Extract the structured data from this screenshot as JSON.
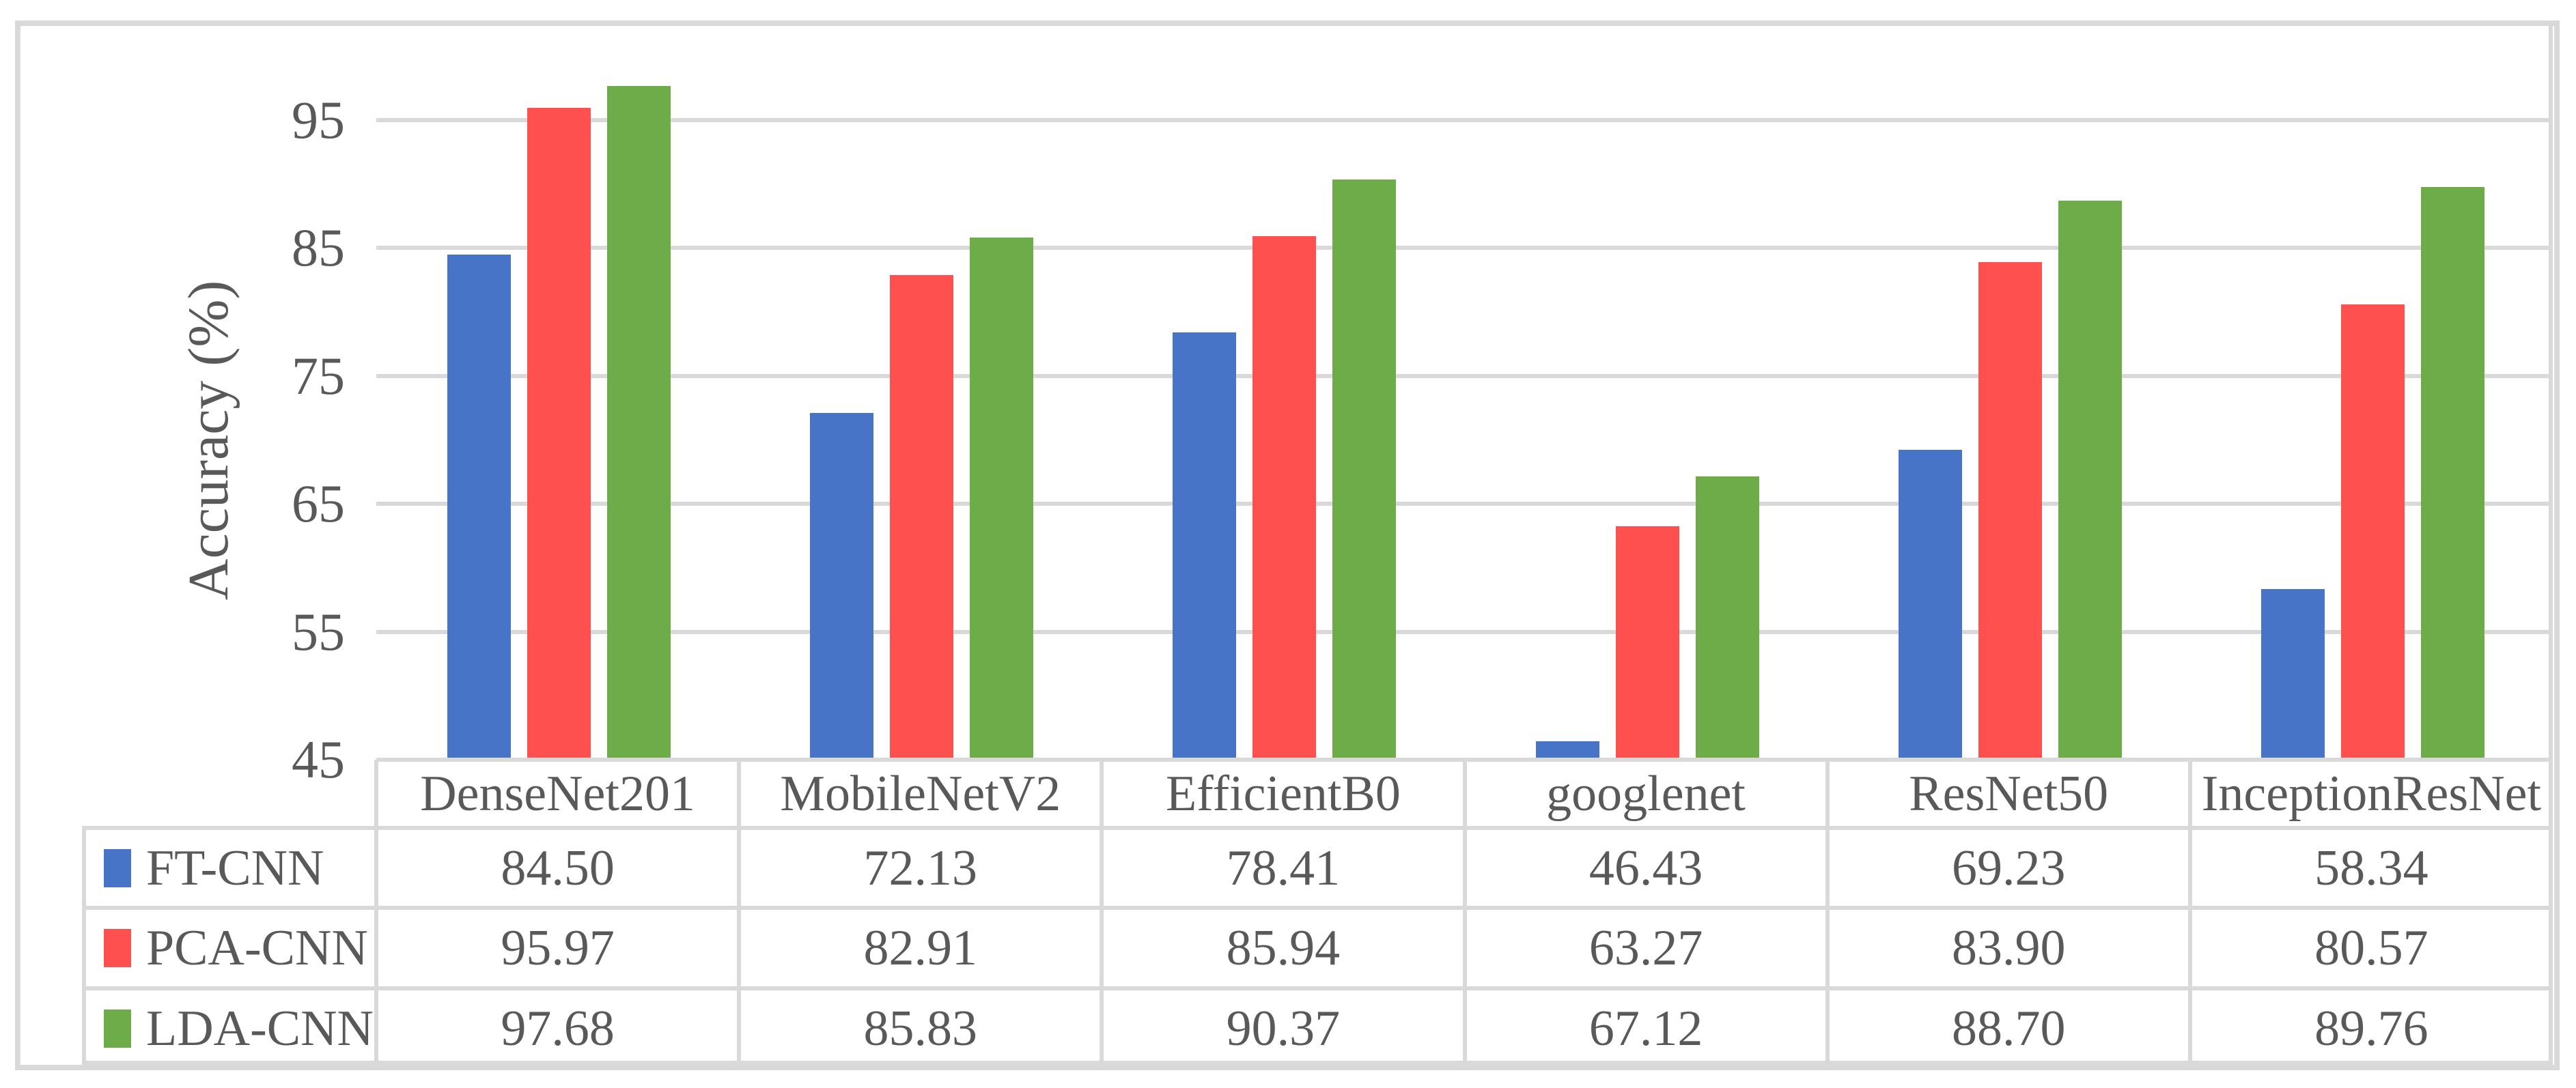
{
  "figure": {
    "background": "#FFFFFF",
    "frame_color": "#D9D9D9",
    "grid_color": "#D9D9D9",
    "text_color": "#595959"
  },
  "chart_data": {
    "type": "bar",
    "title": "",
    "xlabel": "",
    "ylabel": "Accuracy (%)",
    "ylim": [
      45,
      98.5
    ],
    "yticks": [
      45,
      55,
      65,
      75,
      85,
      95
    ],
    "grid": true,
    "legend_position": "data-table-left-column",
    "categories": [
      "DenseNet201",
      "MobileNetV2",
      "EfficientB0",
      "googlenet",
      "ResNet50",
      "InceptionResNet"
    ],
    "series": [
      {
        "name": "FT-CNN",
        "color": "#4874C7",
        "values": [
          84.5,
          72.13,
          78.41,
          46.43,
          69.23,
          58.34
        ]
      },
      {
        "name": "PCA-CNN",
        "color": "#FF5050",
        "values": [
          95.97,
          82.91,
          85.94,
          63.27,
          83.9,
          80.57
        ]
      },
      {
        "name": "LDA-CNN",
        "color": "#6EAC49",
        "values": [
          97.68,
          85.83,
          90.37,
          67.12,
          88.7,
          89.76
        ]
      }
    ],
    "value_format": "0.00"
  }
}
